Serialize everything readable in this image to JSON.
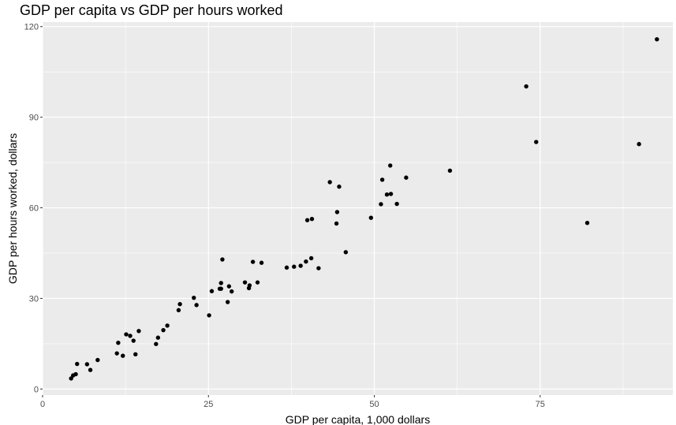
{
  "chart_data": {
    "type": "scatter",
    "title": "GDP per capita vs GDP per hours worked",
    "xlabel": "GDP per capita, 1,000 dollars",
    "ylabel": "GDP per hours worked, dollars",
    "xlim": [
      0,
      95
    ],
    "ylim": [
      -2,
      121.5
    ],
    "x_ticks": [
      0,
      25,
      50,
      75
    ],
    "x_tick_labels": [
      "0",
      "25",
      "50",
      "75"
    ],
    "y_ticks": [
      0,
      30,
      60,
      90,
      120
    ],
    "y_tick_labels": [
      "0",
      "30",
      "60",
      "90",
      "120"
    ],
    "grid": true,
    "background": "#ebebeb",
    "grid_color": "#ffffff",
    "point_color": "#000000",
    "points": [
      [
        4.3,
        3.5
      ],
      [
        4.6,
        4.5
      ],
      [
        5.0,
        4.9
      ],
      [
        5.2,
        8.3
      ],
      [
        6.7,
        8.2
      ],
      [
        7.2,
        6.3
      ],
      [
        8.3,
        9.6
      ],
      [
        11.2,
        11.8
      ],
      [
        11.4,
        15.3
      ],
      [
        12.1,
        11.0
      ],
      [
        12.6,
        18.1
      ],
      [
        13.2,
        17.6
      ],
      [
        13.7,
        16.0
      ],
      [
        14.0,
        11.5
      ],
      [
        14.5,
        19.2
      ],
      [
        17.1,
        14.9
      ],
      [
        17.4,
        17.0
      ],
      [
        18.2,
        19.5
      ],
      [
        18.8,
        21.0
      ],
      [
        20.5,
        26.1
      ],
      [
        20.7,
        28.1
      ],
      [
        22.8,
        30.2
      ],
      [
        23.2,
        27.8
      ],
      [
        25.1,
        24.4
      ],
      [
        25.5,
        32.4
      ],
      [
        26.7,
        33.2
      ],
      [
        26.9,
        35.1
      ],
      [
        26.9,
        33.2
      ],
      [
        27.1,
        42.9
      ],
      [
        27.9,
        28.8
      ],
      [
        28.1,
        34.0
      ],
      [
        28.5,
        32.3
      ],
      [
        30.5,
        35.3
      ],
      [
        31.1,
        33.4
      ],
      [
        31.2,
        34.3
      ],
      [
        31.7,
        42.1
      ],
      [
        32.4,
        35.3
      ],
      [
        33.0,
        41.8
      ],
      [
        36.8,
        40.2
      ],
      [
        37.9,
        40.5
      ],
      [
        38.9,
        40.8
      ],
      [
        39.7,
        42.2
      ],
      [
        39.9,
        55.9
      ],
      [
        40.5,
        43.3
      ],
      [
        40.6,
        56.3
      ],
      [
        41.6,
        40.0
      ],
      [
        43.3,
        68.5
      ],
      [
        44.3,
        54.8
      ],
      [
        44.4,
        58.6
      ],
      [
        44.7,
        67.0
      ],
      [
        45.7,
        45.3
      ],
      [
        49.5,
        56.7
      ],
      [
        51.0,
        61.2
      ],
      [
        51.2,
        69.3
      ],
      [
        51.9,
        64.4
      ],
      [
        52.4,
        74.0
      ],
      [
        52.5,
        64.6
      ],
      [
        53.4,
        61.3
      ],
      [
        54.8,
        70.0
      ],
      [
        61.4,
        72.3
      ],
      [
        72.9,
        100.2
      ],
      [
        74.4,
        81.8
      ],
      [
        82.1,
        55.0
      ],
      [
        89.9,
        81.1
      ],
      [
        92.6,
        115.8
      ]
    ]
  }
}
